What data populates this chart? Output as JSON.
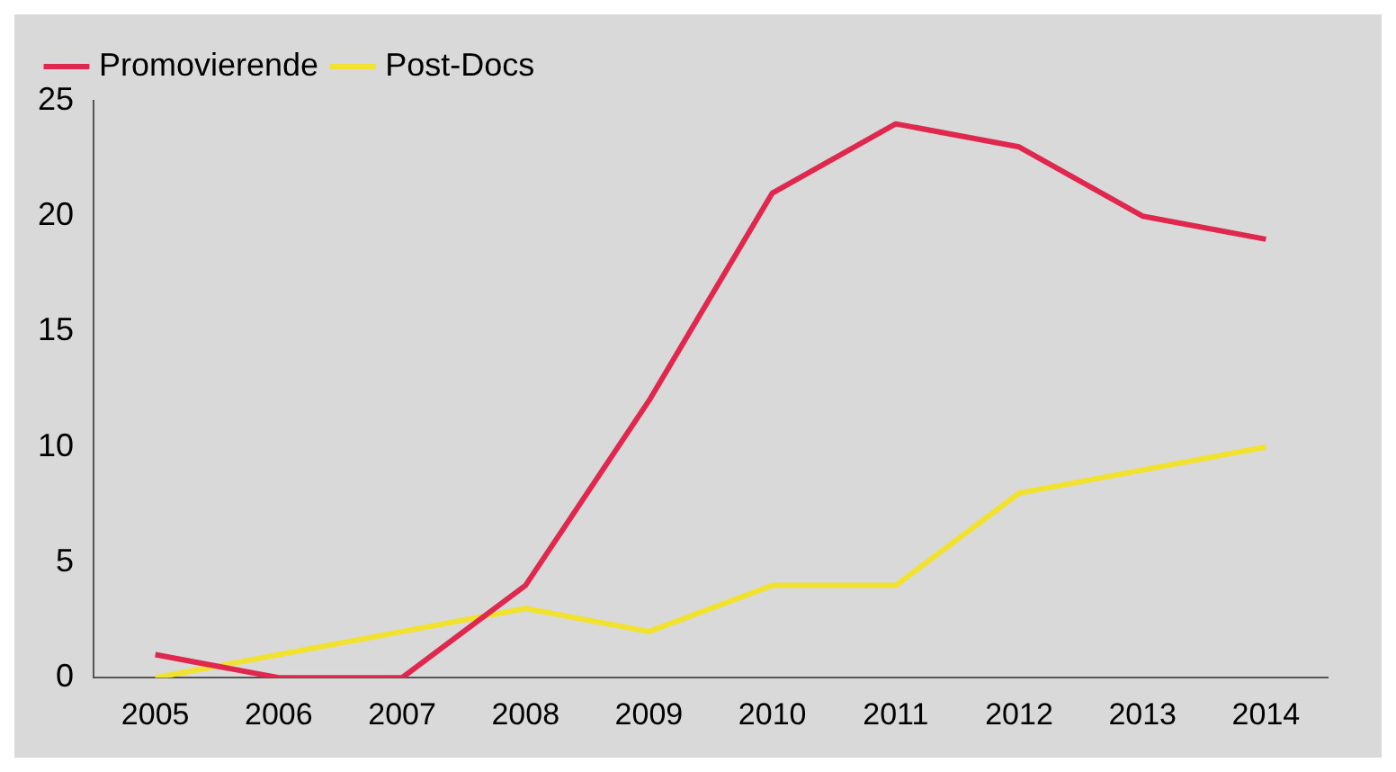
{
  "chart_data": {
    "type": "line",
    "categories": [
      "2005",
      "2006",
      "2007",
      "2008",
      "2009",
      "2010",
      "2011",
      "2012",
      "2013",
      "2014"
    ],
    "series": [
      {
        "name": "Promovierende",
        "color": "#e0284f",
        "values": [
          1,
          0,
          0,
          4,
          12,
          21,
          24,
          23,
          20,
          19
        ]
      },
      {
        "name": "Post-Docs",
        "color": "#f2e230",
        "values": [
          0,
          1,
          2,
          3,
          2,
          4,
          4,
          8,
          9,
          10
        ]
      }
    ],
    "ylim": [
      0,
      25
    ],
    "yticks": [
      0,
      5,
      10,
      15,
      20,
      25
    ],
    "grid": false,
    "legend": "top left",
    "marker": "none",
    "line_style": "solid"
  }
}
